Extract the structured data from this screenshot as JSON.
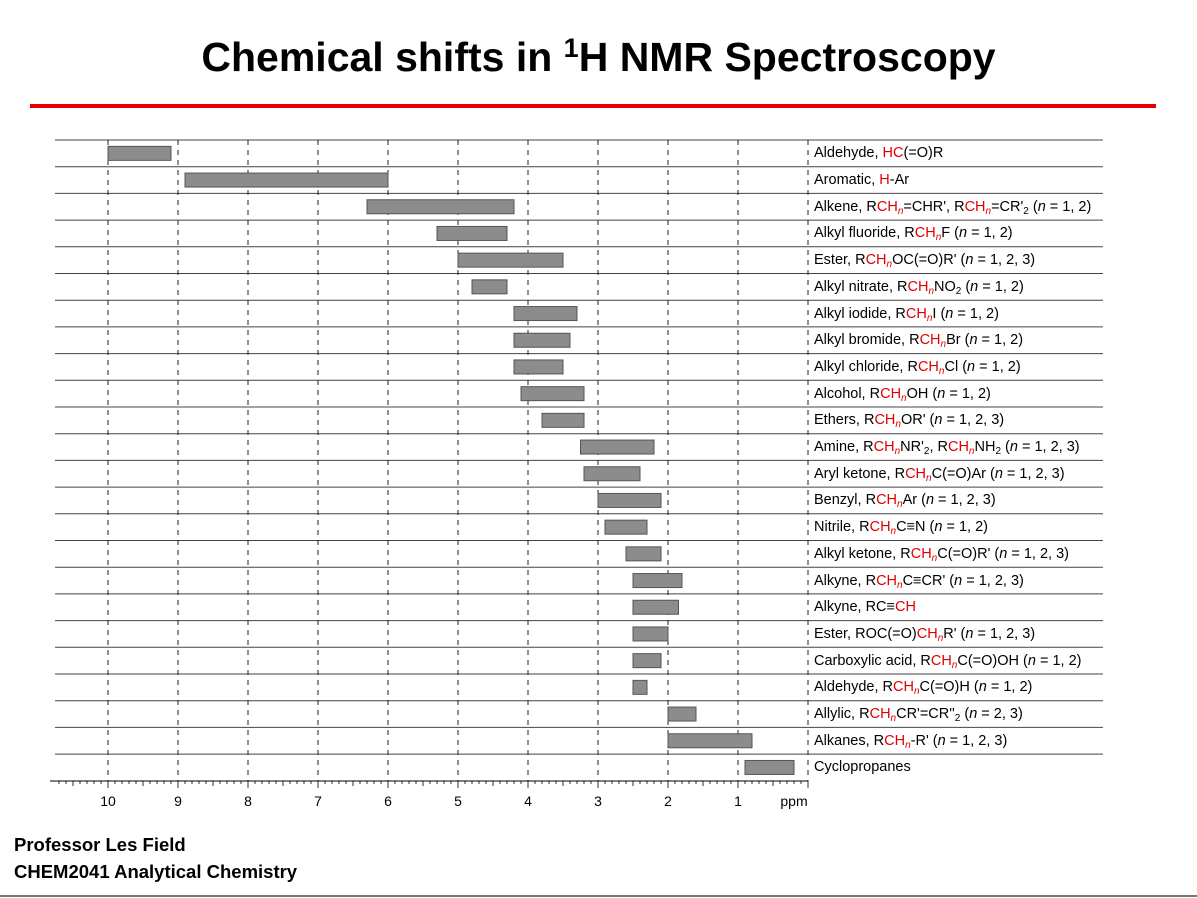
{
  "title": {
    "pre": "Chemical shifts in ",
    "sup": "1",
    "post": "H NMR Spectroscopy"
  },
  "footer": {
    "line1": "Professor Les Field",
    "line2": "CHEM2041 Analytical Chemistry"
  },
  "colors": {
    "accent_red": "#e60000",
    "bar_fill": "#8c8c8c",
    "bar_stroke": "#555555"
  },
  "chart_data": {
    "type": "bar",
    "orientation": "horizontal-range",
    "title": "Chemical shifts in 1H NMR Spectroscopy",
    "xlabel": "ppm",
    "xlim": [
      10.76,
      0
    ],
    "x_ticks": [
      "10",
      "9",
      "8",
      "7",
      "6",
      "5",
      "4",
      "3",
      "2",
      "1"
    ],
    "x_tick_values": [
      10,
      9,
      8,
      7,
      6,
      5,
      4,
      3,
      2,
      1
    ],
    "grid": true,
    "rows": [
      {
        "name": "Aldehyde, HC(=O)R",
        "range": [
          10.0,
          9.1
        ],
        "label": [
          [
            "Aldehyde, ",
            ""
          ],
          [
            "HC",
            "r"
          ],
          [
            "(=O)R",
            ""
          ]
        ]
      },
      {
        "name": "Aromatic, H-Ar",
        "range": [
          8.9,
          6.0
        ],
        "label": [
          [
            "Aromatic, ",
            ""
          ],
          [
            "H",
            "r"
          ],
          [
            "-Ar",
            ""
          ]
        ]
      },
      {
        "name": "Alkene",
        "range": [
          6.3,
          4.2
        ],
        "label": [
          [
            "Alkene, R",
            ""
          ],
          [
            "CH",
            "r"
          ],
          [
            "n",
            "rs"
          ],
          [
            "=CHR', R",
            ""
          ],
          [
            "CH",
            "r"
          ],
          [
            "n",
            "rs"
          ],
          [
            "=CR'",
            ""
          ],
          [
            "2",
            "s"
          ],
          [
            " (",
            ""
          ],
          [
            "n",
            "i"
          ],
          [
            " = 1, 2)",
            ""
          ]
        ]
      },
      {
        "name": "Alkyl fluoride",
        "range": [
          5.3,
          4.3
        ],
        "label": [
          [
            "Alkyl fluoride, R",
            ""
          ],
          [
            "CH",
            "r"
          ],
          [
            "n",
            "rs"
          ],
          [
            "F (",
            ""
          ],
          [
            "n",
            "i"
          ],
          [
            " = 1, 2)",
            ""
          ]
        ]
      },
      {
        "name": "Ester RCHnOC(=O)R'",
        "range": [
          5.0,
          3.5
        ],
        "label": [
          [
            "Ester, R",
            ""
          ],
          [
            "CH",
            "r"
          ],
          [
            "n",
            "rs"
          ],
          [
            "OC(=O)R' (",
            ""
          ],
          [
            "n",
            "i"
          ],
          [
            " = 1, 2, 3)",
            ""
          ]
        ]
      },
      {
        "name": "Alkyl nitrate",
        "range": [
          4.8,
          4.3
        ],
        "label": [
          [
            "Alkyl nitrate, R",
            ""
          ],
          [
            "CH",
            "r"
          ],
          [
            "n",
            "rs"
          ],
          [
            "NO",
            ""
          ],
          [
            "2",
            "s"
          ],
          [
            " (",
            ""
          ],
          [
            "n",
            "i"
          ],
          [
            " = 1, 2)",
            ""
          ]
        ]
      },
      {
        "name": "Alkyl iodide",
        "range": [
          4.2,
          3.3
        ],
        "label": [
          [
            "Alkyl iodide, R",
            ""
          ],
          [
            "CH",
            "r"
          ],
          [
            "n",
            "rs"
          ],
          [
            "I (",
            ""
          ],
          [
            "n",
            "i"
          ],
          [
            " = 1, 2)",
            ""
          ]
        ]
      },
      {
        "name": "Alkyl bromide",
        "range": [
          4.2,
          3.4
        ],
        "label": [
          [
            "Alkyl bromide, R",
            ""
          ],
          [
            "CH",
            "r"
          ],
          [
            "n",
            "rs"
          ],
          [
            "Br (",
            ""
          ],
          [
            "n",
            "i"
          ],
          [
            " = 1, 2)",
            ""
          ]
        ]
      },
      {
        "name": "Alkyl chloride",
        "range": [
          4.2,
          3.5
        ],
        "label": [
          [
            "Alkyl chloride, R",
            ""
          ],
          [
            "CH",
            "r"
          ],
          [
            "n",
            "rs"
          ],
          [
            "Cl (",
            ""
          ],
          [
            "n",
            "i"
          ],
          [
            " = 1, 2)",
            ""
          ]
        ]
      },
      {
        "name": "Alcohol",
        "range": [
          4.1,
          3.2
        ],
        "label": [
          [
            "Alcohol, R",
            ""
          ],
          [
            "CH",
            "r"
          ],
          [
            "n",
            "rs"
          ],
          [
            "OH (",
            ""
          ],
          [
            "n",
            "i"
          ],
          [
            " = 1, 2)",
            ""
          ]
        ]
      },
      {
        "name": "Ethers",
        "range": [
          3.8,
          3.2
        ],
        "label": [
          [
            "Ethers, R",
            ""
          ],
          [
            "CH",
            "r"
          ],
          [
            "n",
            "rs"
          ],
          [
            "OR' (",
            ""
          ],
          [
            "n",
            "i"
          ],
          [
            " = 1, 2, 3)",
            ""
          ]
        ]
      },
      {
        "name": "Amine",
        "range": [
          3.25,
          2.2
        ],
        "label": [
          [
            "Amine, R",
            ""
          ],
          [
            "CH",
            "r"
          ],
          [
            "n",
            "rs"
          ],
          [
            "NR'",
            ""
          ],
          [
            "2",
            "s"
          ],
          [
            ", R",
            ""
          ],
          [
            "CH",
            "r"
          ],
          [
            "n",
            "rs"
          ],
          [
            "NH",
            ""
          ],
          [
            "2",
            "s"
          ],
          [
            " (",
            ""
          ],
          [
            "n",
            "i"
          ],
          [
            " = 1, 2, 3)",
            ""
          ]
        ]
      },
      {
        "name": "Aryl ketone",
        "range": [
          3.2,
          2.4
        ],
        "label": [
          [
            "Aryl ketone, R",
            ""
          ],
          [
            "CH",
            "r"
          ],
          [
            "n",
            "rs"
          ],
          [
            "C(=O)Ar (",
            ""
          ],
          [
            "n",
            "i"
          ],
          [
            " = 1, 2, 3)",
            ""
          ]
        ]
      },
      {
        "name": "Benzyl",
        "range": [
          3.0,
          2.1
        ],
        "label": [
          [
            "Benzyl, R",
            ""
          ],
          [
            "CH",
            "r"
          ],
          [
            "n",
            "rs"
          ],
          [
            "Ar (",
            ""
          ],
          [
            "n",
            "i"
          ],
          [
            " = 1, 2, 3)",
            ""
          ]
        ]
      },
      {
        "name": "Nitrile",
        "range": [
          2.9,
          2.3
        ],
        "label": [
          [
            "Nitrile, R",
            ""
          ],
          [
            "CH",
            "r"
          ],
          [
            "n",
            "rs"
          ],
          [
            "C≡N (",
            ""
          ],
          [
            "n",
            "i"
          ],
          [
            " = 1, 2)",
            ""
          ]
        ]
      },
      {
        "name": "Alkyl ketone",
        "range": [
          2.6,
          2.1
        ],
        "label": [
          [
            "Alkyl ketone, R",
            ""
          ],
          [
            "CH",
            "r"
          ],
          [
            "n",
            "rs"
          ],
          [
            "C(=O)R' (",
            ""
          ],
          [
            "n",
            "i"
          ],
          [
            " = 1, 2, 3)",
            ""
          ]
        ]
      },
      {
        "name": "Alkyne RCHnC≡CR'",
        "range": [
          2.5,
          1.8
        ],
        "label": [
          [
            "Alkyne, R",
            ""
          ],
          [
            "CH",
            "r"
          ],
          [
            "n",
            "rs"
          ],
          [
            "C≡CR' (",
            ""
          ],
          [
            "n",
            "i"
          ],
          [
            " = 1, 2, 3)",
            ""
          ]
        ]
      },
      {
        "name": "Alkyne RC≡CH",
        "range": [
          2.5,
          1.85
        ],
        "label": [
          [
            "Alkyne, RC≡",
            ""
          ],
          [
            "CH",
            "r"
          ]
        ]
      },
      {
        "name": "Ester ROC(=O)CHnR'",
        "range": [
          2.5,
          2.0
        ],
        "label": [
          [
            "Ester, ROC(=O)",
            ""
          ],
          [
            "CH",
            "r"
          ],
          [
            "n",
            "rs"
          ],
          [
            "R' (",
            ""
          ],
          [
            "n",
            "i"
          ],
          [
            " = 1, 2, 3)",
            ""
          ]
        ]
      },
      {
        "name": "Carboxylic acid",
        "range": [
          2.5,
          2.1
        ],
        "label": [
          [
            "Carboxylic acid, R",
            ""
          ],
          [
            "CH",
            "r"
          ],
          [
            "n",
            "rs"
          ],
          [
            "C(=O)OH (",
            ""
          ],
          [
            "n",
            "i"
          ],
          [
            " = 1, 2)",
            ""
          ]
        ]
      },
      {
        "name": "Aldehyde RCHnC(=O)H",
        "range": [
          2.5,
          2.3
        ],
        "label": [
          [
            "Aldehyde, R",
            ""
          ],
          [
            "CH",
            "r"
          ],
          [
            "n",
            "rs"
          ],
          [
            "C(=O)H (",
            ""
          ],
          [
            "n",
            "i"
          ],
          [
            " = 1, 2)",
            ""
          ]
        ]
      },
      {
        "name": "Allylic",
        "range": [
          2.0,
          1.6
        ],
        "label": [
          [
            "Allylic, R",
            ""
          ],
          [
            "CH",
            "r"
          ],
          [
            "n",
            "rs"
          ],
          [
            "CR'=CR''",
            ""
          ],
          [
            "2",
            "s"
          ],
          [
            " (",
            ""
          ],
          [
            "n",
            "i"
          ],
          [
            " = 2, 3)",
            ""
          ]
        ]
      },
      {
        "name": "Alkanes",
        "range": [
          2.0,
          0.8
        ],
        "label": [
          [
            "Alkanes, R",
            ""
          ],
          [
            "CH",
            "r"
          ],
          [
            "n",
            "rs"
          ],
          [
            "-R' (",
            ""
          ],
          [
            "n",
            "i"
          ],
          [
            " = 1, 2, 3)",
            ""
          ]
        ]
      },
      {
        "name": "Cyclopropanes",
        "range": [
          0.9,
          0.2
        ],
        "label": [
          [
            "Cyclopropanes",
            ""
          ]
        ]
      }
    ]
  }
}
